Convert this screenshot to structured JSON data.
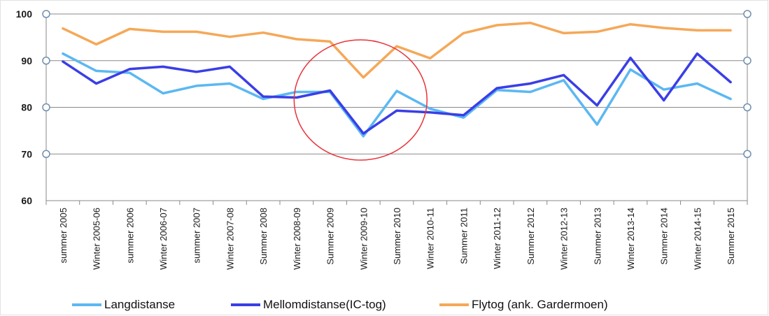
{
  "chart_data": {
    "type": "line",
    "title": "",
    "xlabel": "",
    "ylabel": "",
    "ylim": [
      60,
      100
    ],
    "yticks": [
      60,
      70,
      80,
      90,
      100
    ],
    "grid": true,
    "legend_position": "bottom",
    "categories": [
      "summer 2005",
      "Winter 2005-06",
      "summer 2006",
      "Winter 2006-07",
      "summer 2007",
      "Winter 2007-08",
      "Summer 2008",
      "Winter 2008-09",
      "Summer 2009",
      "Winter 2009-10",
      "Summer 2010",
      "Winter 2010-11",
      "Summer 2011",
      "Winter 2011-12",
      "Summer 2012",
      "Winter 2012-13",
      "Summer 2013",
      "Winter 2013-14",
      "Summer 2014",
      "Winter 2014-15",
      "Summer 2015"
    ],
    "series": [
      {
        "name": "Langdistanse",
        "color": "#5bb8f2",
        "values": [
          91.5,
          87.8,
          87.4,
          83.0,
          84.6,
          85.1,
          81.8,
          83.3,
          83.3,
          73.8,
          83.5,
          79.7,
          77.8,
          83.7,
          83.3,
          85.8,
          76.3,
          88.1,
          83.8,
          85.1,
          81.8
        ]
      },
      {
        "name": "Mellomdistanse(IC-tog)",
        "color": "#3a3ee6",
        "values": [
          89.8,
          85.1,
          88.2,
          88.7,
          87.6,
          88.7,
          82.3,
          82.1,
          83.6,
          74.4,
          79.3,
          78.9,
          78.3,
          84.1,
          85.1,
          86.9,
          80.4,
          90.6,
          81.5,
          91.5,
          85.4
        ]
      },
      {
        "name": "Flytog (ank. Gardermoen)",
        "color": "#f5a858",
        "values": [
          96.9,
          93.5,
          96.8,
          96.2,
          96.2,
          95.1,
          96.0,
          94.6,
          94.1,
          86.4,
          93.1,
          90.5,
          95.9,
          97.6,
          98.1,
          95.9,
          96.2,
          97.8,
          97.0,
          96.5,
          96.5
        ]
      }
    ],
    "annotation": {
      "shape": "circle",
      "color": "#e8333a"
    }
  }
}
